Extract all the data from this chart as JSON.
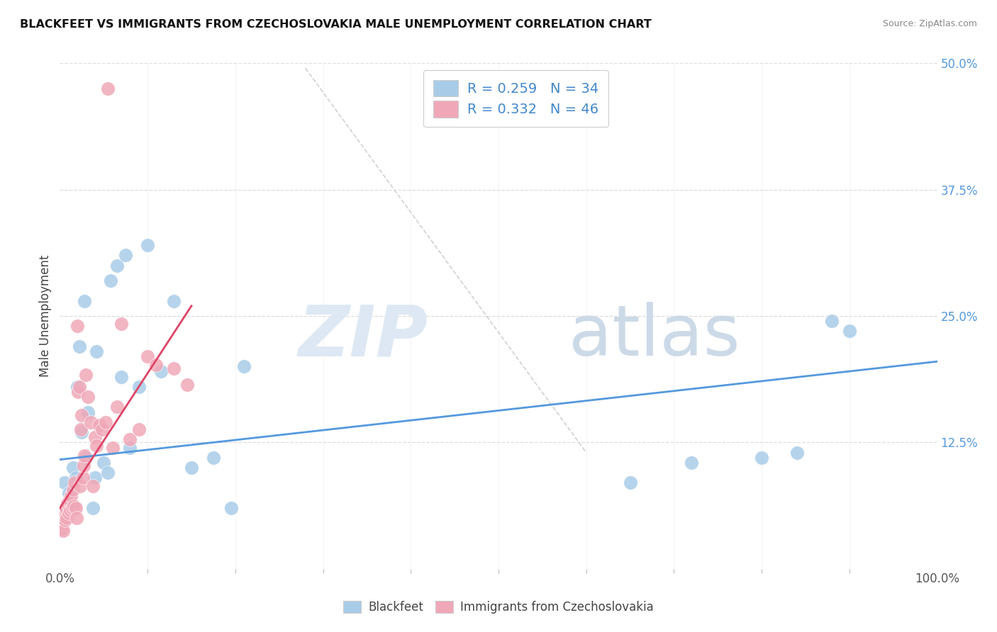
{
  "title": "BLACKFEET VS IMMIGRANTS FROM CZECHOSLOVAKIA MALE UNEMPLOYMENT CORRELATION CHART",
  "source": "Source: ZipAtlas.com",
  "ylabel": "Male Unemployment",
  "xlim": [
    0,
    1.0
  ],
  "ylim": [
    0,
    0.5
  ],
  "xtick_positions": [
    0.0,
    1.0
  ],
  "xticklabels": [
    "0.0%",
    "100.0%"
  ],
  "yticks_right": [
    0.0,
    0.125,
    0.25,
    0.375,
    0.5
  ],
  "yticklabels_right": [
    "",
    "12.5%",
    "25.0%",
    "37.5%",
    "50.0%"
  ],
  "legend_label1": "R = 0.259   N = 34",
  "legend_label2": "R = 0.332   N = 46",
  "legend_bottom1": "Blackfeet",
  "legend_bottom2": "Immigrants from Czechoslovakia",
  "color_blue": "#a8cce8",
  "color_pink": "#f0a8b8",
  "line_color_blue": "#5599dd",
  "line_color_pink": "#dd4466",
  "grid_color": "#dddddd",
  "blue_scatter_x": [
    0.005,
    0.01,
    0.015,
    0.018,
    0.02,
    0.022,
    0.025,
    0.028,
    0.03,
    0.032,
    0.038,
    0.04,
    0.042,
    0.05,
    0.055,
    0.058,
    0.065,
    0.07,
    0.075,
    0.08,
    0.09,
    0.1,
    0.115,
    0.13,
    0.15,
    0.175,
    0.195,
    0.21,
    0.65,
    0.72,
    0.8,
    0.84,
    0.88,
    0.9
  ],
  "blue_scatter_y": [
    0.085,
    0.075,
    0.1,
    0.09,
    0.18,
    0.22,
    0.135,
    0.265,
    0.11,
    0.155,
    0.06,
    0.09,
    0.215,
    0.105,
    0.095,
    0.285,
    0.3,
    0.19,
    0.31,
    0.12,
    0.18,
    0.32,
    0.195,
    0.265,
    0.1,
    0.11,
    0.06,
    0.2,
    0.085,
    0.105,
    0.11,
    0.115,
    0.245,
    0.235
  ],
  "pink_scatter_x": [
    0.002,
    0.003,
    0.004,
    0.005,
    0.006,
    0.007,
    0.008,
    0.009,
    0.01,
    0.011,
    0.012,
    0.013,
    0.014,
    0.015,
    0.016,
    0.017,
    0.018,
    0.019,
    0.02,
    0.021,
    0.022,
    0.023,
    0.024,
    0.025,
    0.026,
    0.027,
    0.028,
    0.03,
    0.032,
    0.035,
    0.038,
    0.04,
    0.042,
    0.045,
    0.048,
    0.052,
    0.055,
    0.06,
    0.065,
    0.07,
    0.08,
    0.09,
    0.1,
    0.11,
    0.13,
    0.145
  ],
  "pink_scatter_y": [
    0.04,
    0.045,
    0.038,
    0.055,
    0.048,
    0.06,
    0.05,
    0.065,
    0.055,
    0.068,
    0.058,
    0.072,
    0.06,
    0.078,
    0.062,
    0.085,
    0.06,
    0.05,
    0.24,
    0.175,
    0.18,
    0.082,
    0.138,
    0.152,
    0.09,
    0.102,
    0.112,
    0.192,
    0.17,
    0.145,
    0.082,
    0.13,
    0.122,
    0.142,
    0.138,
    0.145,
    0.475,
    0.12,
    0.16,
    0.242,
    0.128,
    0.138,
    0.21,
    0.202,
    0.198,
    0.182
  ],
  "blue_line_x": [
    0.0,
    1.0
  ],
  "blue_line_y": [
    0.108,
    0.205
  ],
  "pink_line_x": [
    0.0,
    0.15
  ],
  "pink_line_y": [
    0.06,
    0.26
  ],
  "diag_line_x": [
    0.28,
    0.6
  ],
  "diag_line_y": [
    0.495,
    0.115
  ]
}
